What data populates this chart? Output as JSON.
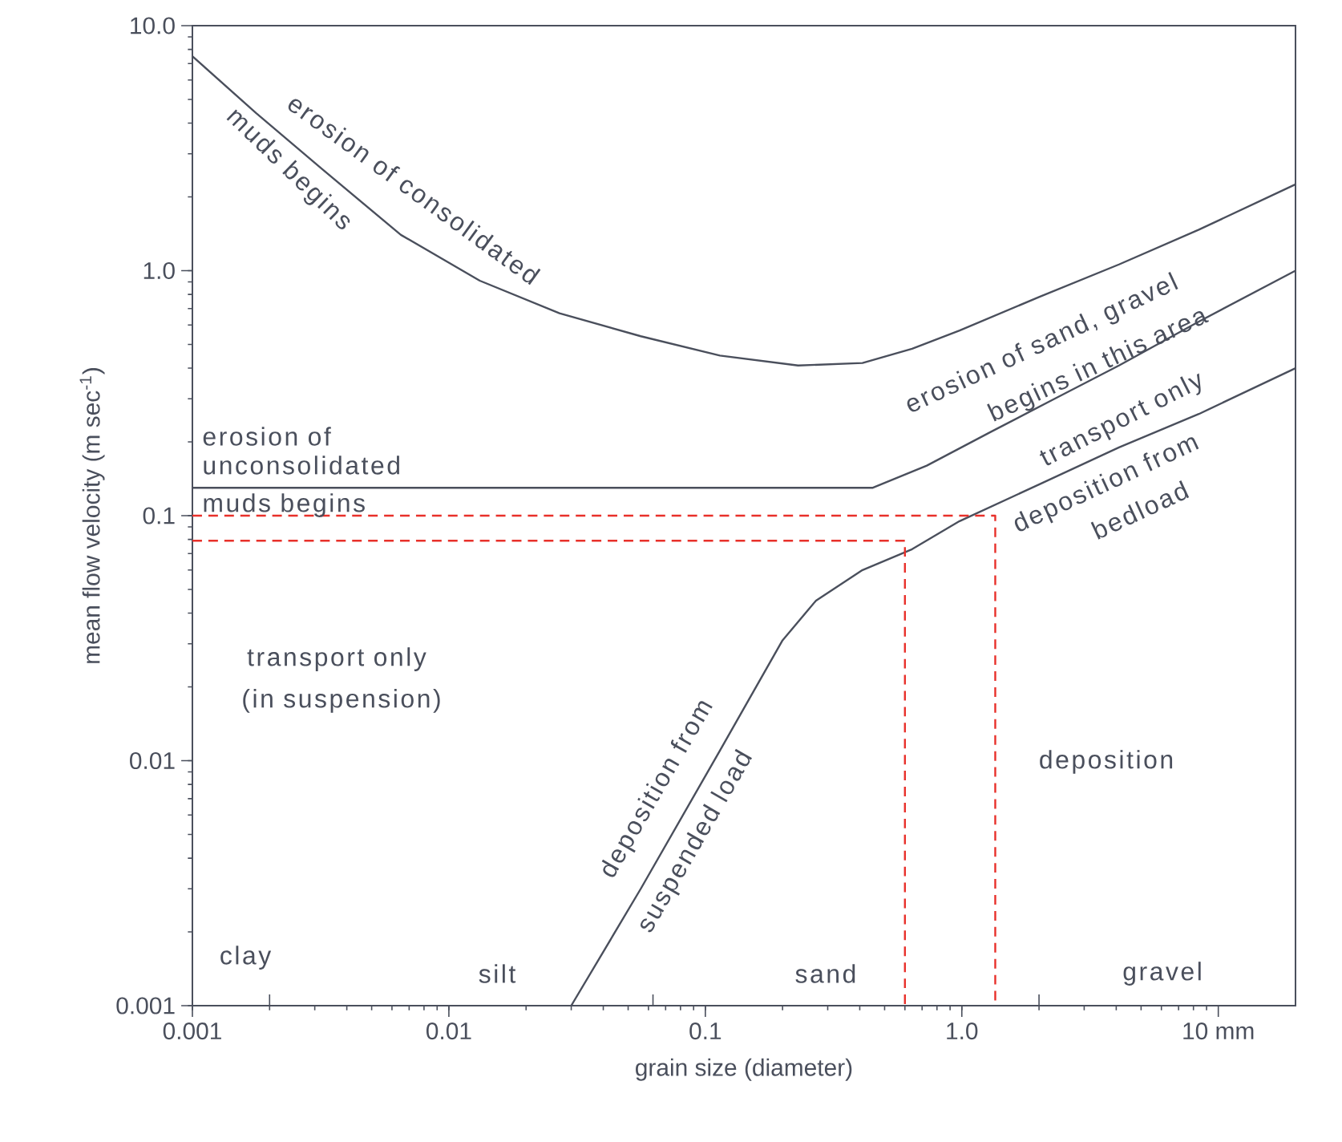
{
  "chart_data": {
    "type": "line",
    "xlabel": "grain size (diameter)",
    "ylabel": "mean flow velocity (m sec$^{-1}$)",
    "log": "xy",
    "xlim": [
      0.001,
      20
    ],
    "ylim": [
      0.001,
      10
    ],
    "xticks": [
      0.001,
      0.01,
      0.1,
      {
        "value": 1,
        "label": "1.0"
      },
      {
        "value": 10,
        "label": "10 mm"
      },
      {
        "value": 0.002,
        "label": null
      },
      {
        "value": 0.0625,
        "label": null
      },
      {
        "value": 2,
        "label": null
      }
    ],
    "yticks": [
      0.001,
      0.01,
      0.1,
      {
        "value": 1,
        "label": "1.0"
      },
      {
        "value": 10,
        "label": "10.0"
      }
    ],
    "grid": false,
    "marker": "none",
    "series": [
      {
        "color": "#4a4f5c",
        "line_style": "solid",
        "x": [
          0.001,
          0.00177,
          0.0032,
          0.0065,
          0.0132,
          0.027,
          0.056,
          0.114,
          0.23,
          0.41,
          0.64,
          0.98,
          2.0,
          4.1,
          8.4,
          20
        ],
        "values": [
          7.5,
          4.4,
          2.6,
          1.4,
          0.91,
          0.67,
          0.54,
          0.45,
          0.41,
          0.42,
          0.48,
          0.57,
          0.78,
          1.06,
          1.47,
          2.25
        ]
      },
      {
        "color": "#4a4f5c",
        "line_style": "solid",
        "x": [
          0.001,
          0.45,
          0.73,
          1.3,
          2.3,
          4.1,
          8.4,
          20
        ],
        "values": [
          0.13,
          0.13,
          0.16,
          0.22,
          0.3,
          0.41,
          0.62,
          1.0
        ]
      },
      {
        "color": "#4a4f5c",
        "line_style": "solid",
        "x": [
          0.03,
          0.056,
          0.114,
          0.2,
          0.27,
          0.41,
          0.64,
          0.98,
          2.0,
          4.1,
          8.4,
          20
        ],
        "values": [
          0.001,
          0.003,
          0.011,
          0.031,
          0.045,
          0.06,
          0.073,
          0.095,
          0.134,
          0.19,
          0.26,
          0.4
        ]
      },
      {
        "color": "#e8302a",
        "line_style": "dashed",
        "x": [
          0.001,
          1.35,
          1.35
        ],
        "values": [
          0.1,
          0.1,
          0.001
        ]
      },
      {
        "color": "#e8302a",
        "line_style": "dashed",
        "x": [
          0.001,
          0.6,
          0.6
        ],
        "values": [
          0.079,
          0.079,
          0.001
        ]
      }
    ],
    "annotations": [
      "erosion of consolidated",
      "muds begins",
      "erosion of",
      "unconsolidated",
      "muds begins",
      "transport only",
      "(in suspension)",
      "deposition from",
      "suspended load",
      "erosion of sand, gravel",
      "begins in this area",
      "transport only",
      "deposition from",
      "bedload",
      "deposition",
      "clay",
      "silt",
      "sand",
      "gravel"
    ]
  }
}
